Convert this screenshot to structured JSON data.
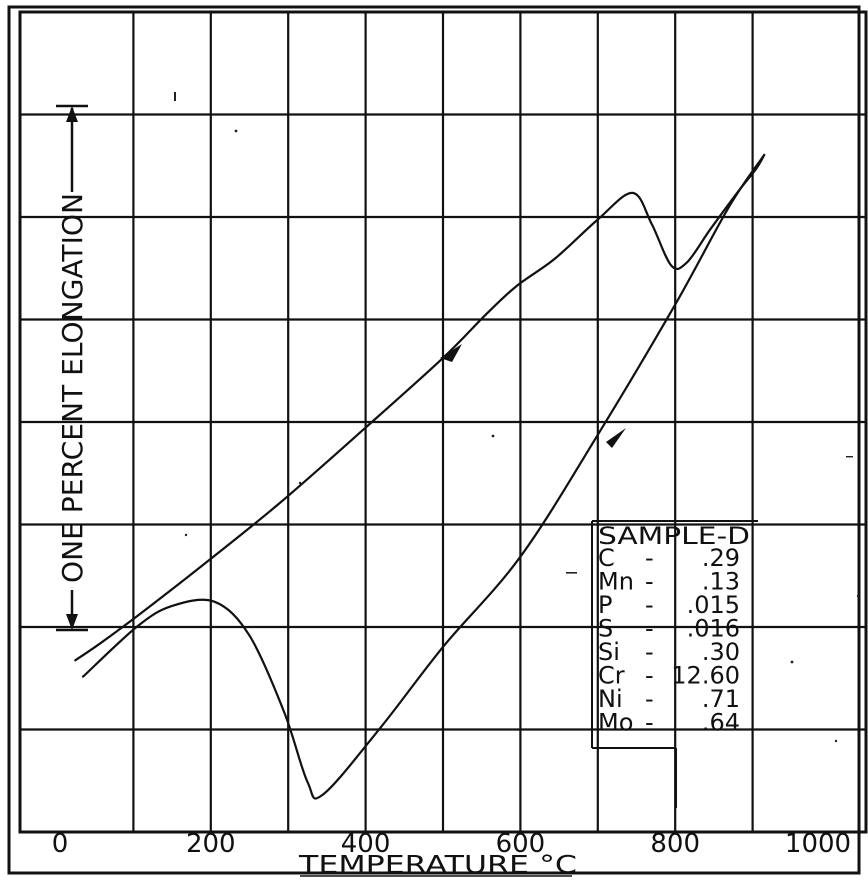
{
  "chart_data": {
    "type": "line",
    "title": "",
    "xlabel": "TEMPERATURE °C",
    "ylabel": "ONE PERCENT ELONGATION",
    "xlim": [
      0,
      1000
    ],
    "x_ticks": [
      "0",
      "200",
      "400",
      "600",
      "800",
      "1000"
    ],
    "y_divisions": 7,
    "grid": true,
    "series": [
      {
        "name": "",
        "direction": "heating",
        "x": [
          25,
          60,
          110,
          190,
          290,
          400,
          500,
          555,
          595,
          645,
          700,
          745,
          770,
          795,
          815,
          845,
          880,
          905,
          915
        ],
        "y": [
          0.7,
          0.88,
          1.16,
          1.63,
          2.24,
          2.97,
          3.65,
          4.07,
          4.35,
          4.62,
          5.0,
          5.26,
          4.95,
          4.55,
          4.58,
          4.9,
          5.26,
          5.5,
          5.63
        ]
      },
      {
        "name": "",
        "direction": "cooling",
        "x": [
          915,
          870,
          800,
          700,
          600,
          500,
          420,
          345,
          325,
          295,
          250,
          205,
          150,
          105,
          35
        ],
        "y": [
          5.63,
          5.13,
          4.17,
          2.9,
          1.71,
          0.83,
          0.05,
          -0.61,
          -0.49,
          0.19,
          0.94,
          1.27,
          1.23,
          1.03,
          0.54
        ]
      }
    ],
    "annotations": {
      "legend_box": "right-lower",
      "scale_arrow": "ONE PERCENT ELONGATION",
      "composition_title": "SAMPLE-D",
      "composition": [
        {
          "element": "C",
          "sep": "-",
          "value": ".29"
        },
        {
          "element": "Mn",
          "sep": "-",
          "value": ".13"
        },
        {
          "element": "P",
          "sep": "-",
          "value": ".015"
        },
        {
          "element": "S",
          "sep": "-",
          "value": ".016"
        },
        {
          "element": "Si",
          "sep": "-",
          "value": ".30"
        },
        {
          "element": "Cr",
          "sep": "-",
          "value": "12.60"
        },
        {
          "element": "Ni",
          "sep": "-",
          "value": ".71"
        },
        {
          "element": "Mo",
          "sep": "-",
          "value": ".64"
        }
      ]
    }
  },
  "ink_color": "#111111",
  "paper_color": "#ffffff"
}
